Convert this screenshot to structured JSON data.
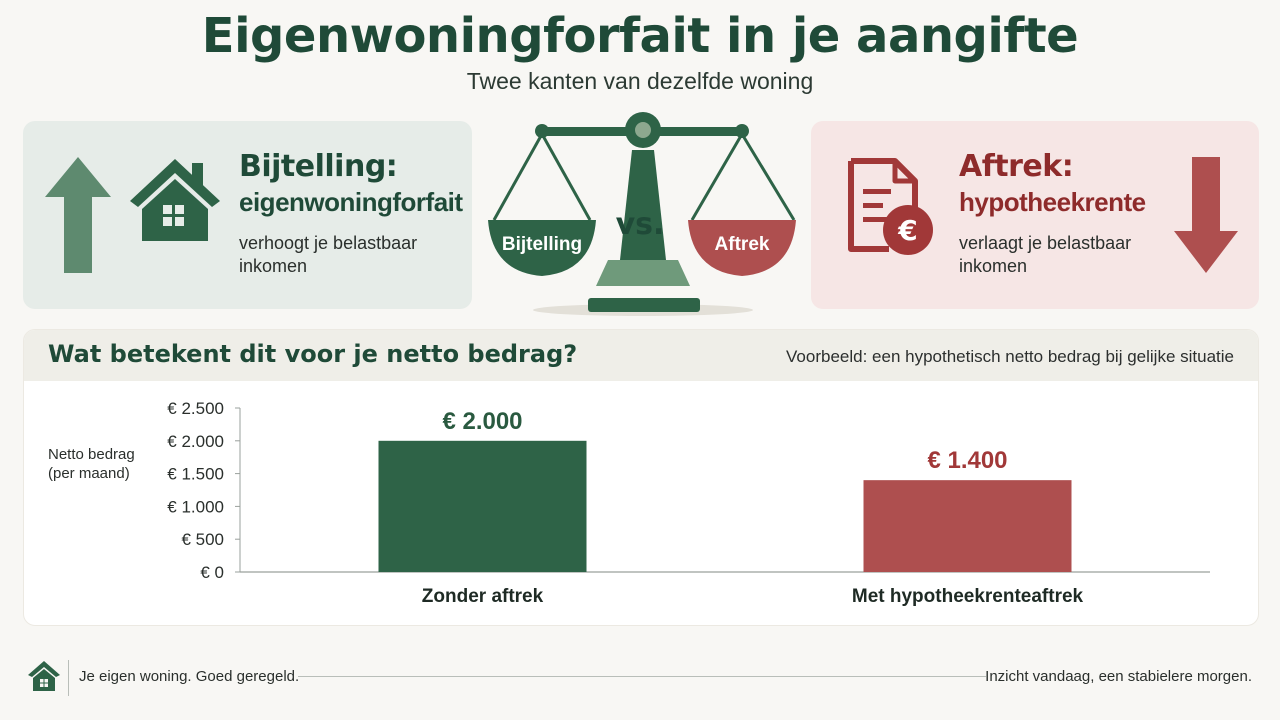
{
  "header": {
    "title": "Eigenwoningforfait in je aangifte",
    "subtitle": "Twee kanten van dezelfde woning"
  },
  "left_panel": {
    "title": "Bijtelling:",
    "subtitle": "eigenwoningforfait",
    "desc_line1": "verhoogt je belastbaar",
    "desc_line2": "inkomen",
    "color": "#1f4a38",
    "icons": [
      "arrow-up-icon",
      "house-icon"
    ]
  },
  "right_panel": {
    "title": "Aftrek:",
    "subtitle": "hypotheekrente",
    "desc_line1": "verlaagt je belastbaar",
    "desc_line2": "inkomen",
    "color": "#8e2b2b",
    "icons": [
      "document-euro-icon",
      "arrow-down-icon"
    ]
  },
  "scale": {
    "left_label": "Bijtelling",
    "right_label": "Aftrek",
    "vs_label": "vs.",
    "icon": "balance-scale-icon"
  },
  "chart_section": {
    "title": "Wat betekent dit voor je netto bedrag?",
    "note": "Voorbeeld: een hypothetisch netto bedrag bij gelijke situatie"
  },
  "chart_data": {
    "type": "bar",
    "categories": [
      "Zonder aftrek",
      "Met hypotheekrenteaftrek"
    ],
    "values": [
      2000,
      1400
    ],
    "value_labels": [
      "€ 2.000",
      "€ 1.400"
    ],
    "colors": [
      "#2e6347",
      "#ae4f4f"
    ],
    "label_colors": [
      "#2a5a40",
      "#a13838"
    ],
    "ylabel_line1": "Netto bedrag",
    "ylabel_line2": "(per maand)",
    "ylim": [
      0,
      2500
    ],
    "yticks": [
      0,
      500,
      1000,
      1500,
      2000,
      2500
    ],
    "ytick_labels": [
      "€ 0",
      "€ 500",
      "€ 1.000",
      "€ 1.500",
      "€ 2.000",
      "€ 2.500"
    ],
    "grid": false,
    "legend": "none"
  },
  "footer": {
    "left_text": "Je eigen woning. Goed geregeld.",
    "right_text": "Inzicht vandaag, een stabielere morgen.",
    "icon": "house-icon"
  }
}
